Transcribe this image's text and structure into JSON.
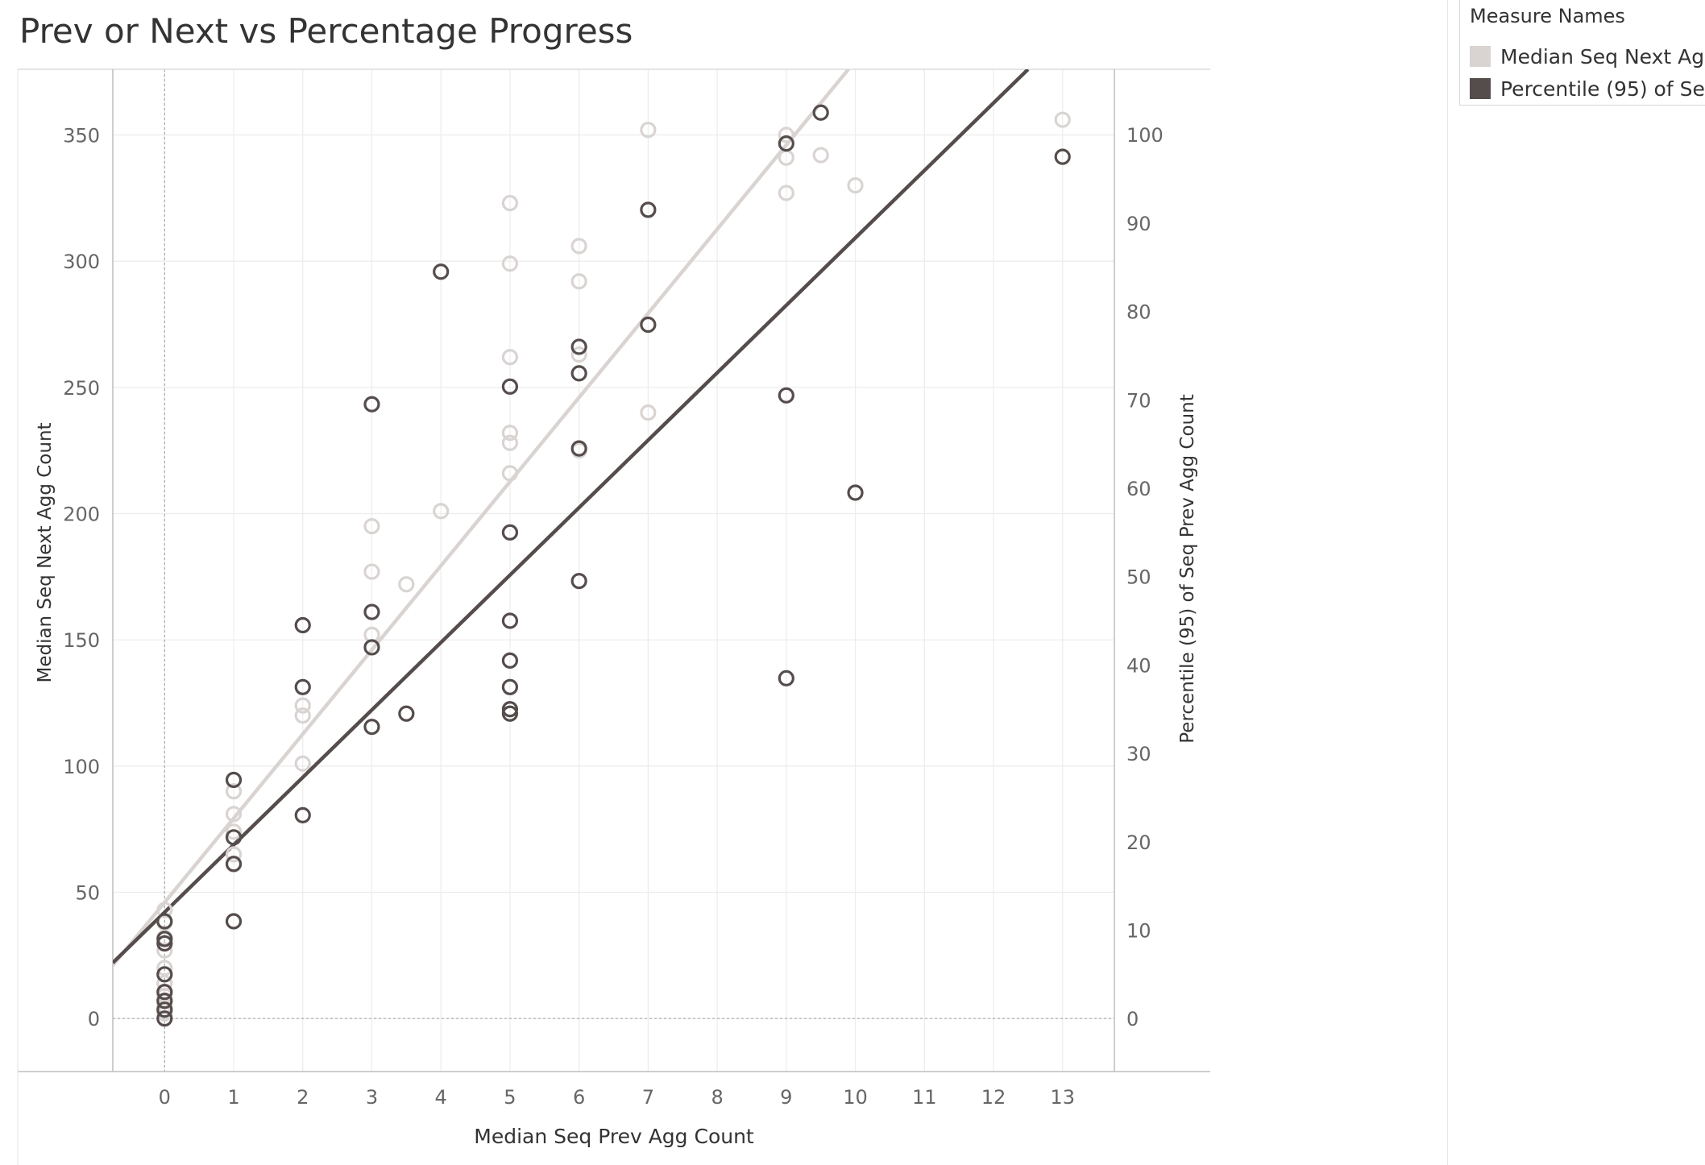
{
  "title": "Prev or Next vs Percentage Progress",
  "legend": {
    "title": "Measure Names",
    "items": [
      {
        "label": "Median Seq Next Ag..",
        "color": "#d9d4d2"
      },
      {
        "label": "Percentile (95) of Se..",
        "color": "#554c4c"
      }
    ]
  },
  "chart_data": {
    "type": "scatter",
    "title": "Prev or Next vs Percentage Progress",
    "xlabel": "Median Seq Prev Agg Count",
    "ylabel": "Median Seq Next Agg Count",
    "y2label": "Percentile (95) of Seq Prev Agg Count",
    "xlim": [
      -0.75,
      13.75
    ],
    "ylim": [
      -21,
      376
    ],
    "y2lim": [
      -6,
      107.4
    ],
    "xticks": [
      "0",
      "1",
      "2",
      "3",
      "4",
      "5",
      "6",
      "7",
      "8",
      "9",
      "10",
      "11",
      "12",
      "13"
    ],
    "yticks": [
      "0",
      "50",
      "100",
      "150",
      "200",
      "250",
      "300",
      "350"
    ],
    "y2ticks": [
      "0",
      "10",
      "20",
      "30",
      "40",
      "50",
      "60",
      "70",
      "80",
      "90",
      "100"
    ],
    "grid": true,
    "legend_position": "right",
    "series": [
      {
        "name": "Median Seq Next Ag..",
        "axis": "left",
        "color": "#d9d4d2",
        "points": [
          [
            0,
            43
          ],
          [
            0,
            38
          ],
          [
            0,
            32
          ],
          [
            0,
            27
          ],
          [
            0,
            20
          ],
          [
            0,
            14
          ],
          [
            0,
            9
          ],
          [
            0,
            5
          ],
          [
            0,
            2
          ],
          [
            1,
            90
          ],
          [
            1,
            81
          ],
          [
            1,
            74
          ],
          [
            1,
            65
          ],
          [
            1,
            61
          ],
          [
            2,
            124
          ],
          [
            2,
            120
          ],
          [
            2,
            101
          ],
          [
            3,
            195
          ],
          [
            3,
            177
          ],
          [
            3,
            152
          ],
          [
            3.5,
            172
          ],
          [
            4,
            201
          ],
          [
            5,
            323
          ],
          [
            5,
            299
          ],
          [
            5,
            262
          ],
          [
            5,
            232
          ],
          [
            5,
            228
          ],
          [
            5,
            216
          ],
          [
            6,
            306
          ],
          [
            6,
            292
          ],
          [
            6,
            263
          ],
          [
            6,
            225
          ],
          [
            7,
            352
          ],
          [
            7,
            240
          ],
          [
            9,
            350
          ],
          [
            9,
            341
          ],
          [
            9,
            327
          ],
          [
            9.5,
            342
          ],
          [
            10,
            330
          ],
          [
            13,
            356
          ]
        ],
        "trend": [
          [
            -0.75,
            21
          ],
          [
            9.9,
            376
          ]
        ]
      },
      {
        "name": "Percentile (95) of Se..",
        "axis": "right",
        "color": "#554c4c",
        "points": [
          [
            0,
            11
          ],
          [
            0,
            9
          ],
          [
            0,
            8.5
          ],
          [
            0,
            5
          ],
          [
            0,
            3
          ],
          [
            0,
            2
          ],
          [
            0,
            1
          ],
          [
            0,
            0
          ],
          [
            1,
            27
          ],
          [
            1,
            20.5
          ],
          [
            1,
            17.5
          ],
          [
            1,
            11
          ],
          [
            2,
            44.5
          ],
          [
            2,
            37.5
          ],
          [
            2,
            23
          ],
          [
            3,
            69.5
          ],
          [
            3,
            46
          ],
          [
            3,
            42
          ],
          [
            3,
            33
          ],
          [
            3.5,
            34.5
          ],
          [
            4,
            84.5
          ],
          [
            5,
            71.5
          ],
          [
            5,
            55
          ],
          [
            5,
            45
          ],
          [
            5,
            40.5
          ],
          [
            5,
            37.5
          ],
          [
            5,
            35
          ],
          [
            5,
            34.5
          ],
          [
            6,
            76
          ],
          [
            6,
            73
          ],
          [
            6,
            64.5
          ],
          [
            6,
            49.5
          ],
          [
            7,
            91.5
          ],
          [
            7,
            78.5
          ],
          [
            9,
            99
          ],
          [
            9,
            70.5
          ],
          [
            9,
            38.5
          ],
          [
            9.5,
            102.5
          ],
          [
            10,
            59.5
          ],
          [
            13,
            97.5
          ]
        ],
        "trend": [
          [
            -0.75,
            6.3
          ],
          [
            12.5,
            107.4
          ]
        ]
      }
    ]
  }
}
